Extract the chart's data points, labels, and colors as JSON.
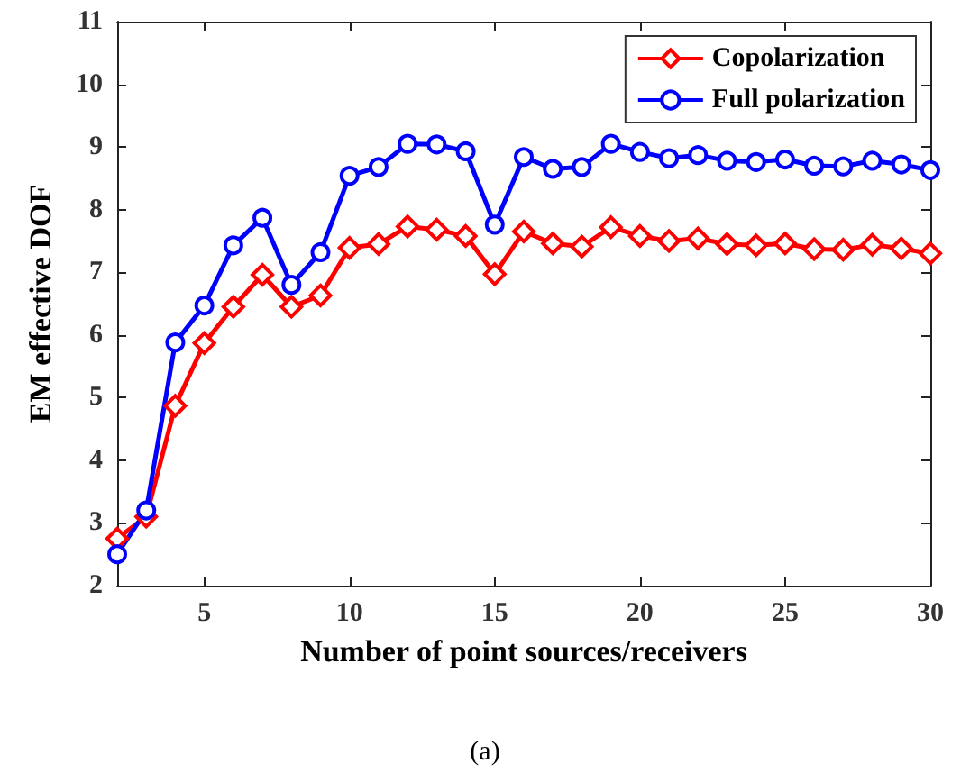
{
  "chart_data": {
    "type": "line",
    "xlabel": "Number of point sources/receivers",
    "ylabel": "EM effective DOF",
    "annotations": [
      "(a)"
    ],
    "x": [
      2,
      3,
      4,
      5,
      6,
      7,
      8,
      9,
      10,
      11,
      12,
      13,
      14,
      15,
      16,
      17,
      18,
      19,
      20,
      21,
      22,
      23,
      24,
      25,
      26,
      27,
      28,
      29,
      30
    ],
    "xlim": [
      2,
      30
    ],
    "xticks": [
      5,
      10,
      15,
      20,
      25,
      30
    ],
    "ylim": [
      2,
      11
    ],
    "yticks": [
      2,
      3,
      4,
      5,
      6,
      7,
      8,
      9,
      10,
      11
    ],
    "grid": false,
    "legend": "top right",
    "line_style": "solid",
    "series": [
      {
        "name": "Copolarization",
        "color": "#ff0000",
        "marker": "diamond",
        "values": [
          2.75,
          3.1,
          4.87,
          5.87,
          6.45,
          6.96,
          6.45,
          6.63,
          7.39,
          7.45,
          7.73,
          7.68,
          7.58,
          6.97,
          7.65,
          7.46,
          7.41,
          7.72,
          7.58,
          7.5,
          7.54,
          7.45,
          7.43,
          7.46,
          7.37,
          7.36,
          7.44,
          7.38,
          7.3
        ]
      },
      {
        "name": "Full polarization",
        "color": "#0000ff",
        "marker": "circle",
        "values": [
          2.5,
          3.2,
          5.88,
          6.47,
          7.43,
          7.87,
          6.8,
          7.32,
          8.54,
          8.68,
          9.05,
          9.04,
          8.93,
          7.76,
          8.84,
          8.65,
          8.68,
          9.05,
          8.92,
          8.82,
          8.87,
          8.78,
          8.76,
          8.8,
          8.7,
          8.69,
          8.78,
          8.72,
          8.63
        ]
      }
    ]
  }
}
